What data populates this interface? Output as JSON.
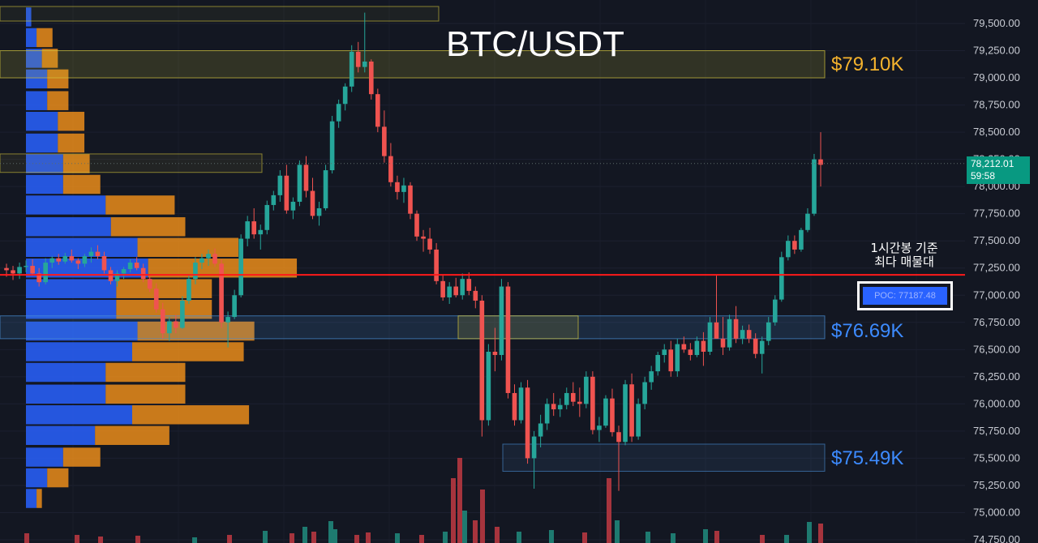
{
  "title": "BTC/USDT",
  "colors": {
    "background": "#131722",
    "up": "#26a69a",
    "down": "#ef5350",
    "volume_up": "#1e7a70",
    "volume_down": "#a6343d",
    "profile_blue": "#2962ff",
    "profile_orange": "#f7931a",
    "zone_yellow": "#d4c53a",
    "zone_blue": "#4a90d9",
    "poc_line": "#ff1a1a",
    "label_orange": "#f5b32d",
    "label_blue": "#3d8bff"
  },
  "zones": [
    {
      "label": "$79.10K",
      "color": "#f5b32d"
    },
    {
      "label": "$76.69K",
      "color": "#3d8bff"
    },
    {
      "label": "$75.49K",
      "color": "#3d8bff"
    }
  ],
  "annotation": {
    "line1": "1시간봉 기준",
    "line2": "최다 매물대"
  },
  "poc_label": "POC: 77187.48",
  "price_tag": {
    "price": "78,212.01",
    "countdown": "59:58"
  },
  "chart_data": {
    "type": "candlestick",
    "title": "BTC/USDT",
    "y_axis": {
      "ticks": [
        "79,500.00",
        "79,250.00",
        "79,000.00",
        "78,750.00",
        "78,500.00",
        "78,250.00",
        "78,000.00",
        "77,750.00",
        "77,500.00",
        "77,250.00",
        "77,000.00",
        "76,750.00",
        "76,500.00",
        "76,250.00",
        "76,000.00",
        "75,750.00",
        "75,500.00",
        "75,250.00",
        "75,000.00",
        "74,750.00"
      ],
      "range": [
        74740,
        79620
      ]
    },
    "last_price": 78212.01,
    "poc": 77187.48,
    "zones": [
      {
        "name": "resistance",
        "low": 79000,
        "high": 79250,
        "value": 79100
      },
      {
        "name": "support",
        "low": 76600,
        "high": 76800,
        "value": 76690
      },
      {
        "name": "support",
        "low": 75380,
        "high": 75620,
        "value": 75490
      }
    ],
    "candles": [
      [
        77250,
        77290,
        77170,
        77230
      ],
      [
        77230,
        77270,
        77140,
        77200
      ],
      [
        77200,
        77300,
        77150,
        77260
      ],
      [
        77260,
        77320,
        77210,
        77270
      ],
      [
        77270,
        77330,
        77180,
        77200
      ],
      [
        77200,
        77250,
        77080,
        77120
      ],
      [
        77120,
        77340,
        77100,
        77300
      ],
      [
        77300,
        77360,
        77250,
        77340
      ],
      [
        77340,
        77380,
        77280,
        77310
      ],
      [
        77310,
        77390,
        77290,
        77360
      ],
      [
        77360,
        77420,
        77300,
        77320
      ],
      [
        77320,
        77340,
        77240,
        77290
      ],
      [
        77290,
        77380,
        77260,
        77360
      ],
      [
        77360,
        77440,
        77300,
        77400
      ],
      [
        77400,
        77460,
        77330,
        77360
      ],
      [
        77360,
        77400,
        77200,
        77230
      ],
      [
        77230,
        77260,
        77100,
        77130
      ],
      [
        77130,
        77230,
        77080,
        77200
      ],
      [
        77200,
        77260,
        77150,
        77240
      ],
      [
        77240,
        77330,
        77210,
        77300
      ],
      [
        77300,
        77350,
        77230,
        77250
      ],
      [
        77250,
        77290,
        77120,
        77150
      ],
      [
        77150,
        77190,
        77030,
        77060
      ],
      [
        77060,
        77110,
        76840,
        76870
      ],
      [
        76870,
        76930,
        76600,
        76650
      ],
      [
        76650,
        76800,
        76580,
        76760
      ],
      [
        76760,
        76820,
        76650,
        76700
      ],
      [
        76700,
        76990,
        76690,
        76950
      ],
      [
        76950,
        77180,
        76920,
        77150
      ],
      [
        77150,
        77350,
        77100,
        77300
      ],
      [
        77300,
        77380,
        77240,
        77340
      ],
      [
        77340,
        77420,
        77270,
        77380
      ],
      [
        77380,
        77430,
        77260,
        77290
      ],
      [
        77290,
        77330,
        76700,
        76750
      ],
      [
        76750,
        76850,
        76520,
        76800
      ],
      [
        76800,
        77050,
        76780,
        77000
      ],
      [
        77000,
        77560,
        76980,
        77520
      ],
      [
        77520,
        77730,
        77450,
        77680
      ],
      [
        77680,
        77800,
        77520,
        77560
      ],
      [
        77560,
        77650,
        77420,
        77600
      ],
      [
        77600,
        77870,
        77560,
        77830
      ],
      [
        77830,
        77960,
        77780,
        77920
      ],
      [
        77920,
        78150,
        77860,
        78100
      ],
      [
        78100,
        78200,
        77750,
        77780
      ],
      [
        77780,
        77900,
        77700,
        77860
      ],
      [
        77860,
        78240,
        77820,
        78200
      ],
      [
        78200,
        78280,
        77900,
        77960
      ],
      [
        77960,
        78080,
        77700,
        77730
      ],
      [
        77730,
        77860,
        77640,
        77800
      ],
      [
        77800,
        78200,
        77780,
        78150
      ],
      [
        78150,
        78650,
        78120,
        78600
      ],
      [
        78600,
        78800,
        78540,
        78760
      ],
      [
        78760,
        78950,
        78700,
        78920
      ],
      [
        78920,
        79300,
        78870,
        79240
      ],
      [
        79240,
        79330,
        79050,
        79100
      ],
      [
        79100,
        79600,
        79050,
        79150
      ],
      [
        79150,
        79170,
        78800,
        78850
      ],
      [
        78850,
        78900,
        78500,
        78550
      ],
      [
        78550,
        78700,
        78220,
        78280
      ],
      [
        78280,
        78400,
        78000,
        78040
      ],
      [
        78040,
        78100,
        77880,
        77950
      ],
      [
        77950,
        78080,
        77850,
        78010
      ],
      [
        78010,
        78040,
        77700,
        77750
      ],
      [
        77750,
        77780,
        77500,
        77540
      ],
      [
        77540,
        77600,
        77400,
        77520
      ],
      [
        77520,
        77620,
        77380,
        77420
      ],
      [
        77420,
        77480,
        77100,
        77130
      ],
      [
        77130,
        77180,
        76950,
        76980
      ],
      [
        76980,
        77120,
        76920,
        77080
      ],
      [
        77080,
        77160,
        76980,
        77000
      ],
      [
        77000,
        77200,
        76960,
        77150
      ],
      [
        77150,
        77210,
        77000,
        77040
      ],
      [
        77040,
        77080,
        76880,
        76950
      ],
      [
        76950,
        77000,
        75700,
        75850
      ],
      [
        75850,
        76550,
        75800,
        76480
      ],
      [
        76480,
        76700,
        76300,
        76450
      ],
      [
        76450,
        77150,
        76400,
        77080
      ],
      [
        77080,
        77120,
        76050,
        76100
      ],
      [
        76100,
        76180,
        75800,
        75850
      ],
      [
        75850,
        76200,
        75820,
        76150
      ],
      [
        76150,
        76220,
        75450,
        75500
      ],
      [
        75500,
        75750,
        75220,
        75700
      ],
      [
        75700,
        75900,
        75600,
        75820
      ],
      [
        75820,
        76050,
        75760,
        76000
      ],
      [
        76000,
        76100,
        75890,
        75950
      ],
      [
        75950,
        76050,
        75880,
        75990
      ],
      [
        75990,
        76150,
        75950,
        76100
      ],
      [
        76100,
        76200,
        75980,
        76020
      ],
      [
        76020,
        76150,
        75880,
        76000
      ],
      [
        76000,
        76300,
        75960,
        76250
      ],
      [
        76250,
        76300,
        75720,
        75760
      ],
      [
        75760,
        75880,
        75650,
        75800
      ],
      [
        75800,
        76080,
        75780,
        76050
      ],
      [
        76050,
        76140,
        75700,
        75740
      ],
      [
        75740,
        75800,
        75200,
        75650
      ],
      [
        75650,
        76220,
        75620,
        76180
      ],
      [
        76180,
        76280,
        75650,
        75700
      ],
      [
        75700,
        76050,
        75670,
        76000
      ],
      [
        76000,
        76250,
        75950,
        76200
      ],
      [
        76200,
        76350,
        76130,
        76300
      ],
      [
        76300,
        76480,
        76260,
        76450
      ],
      [
        76450,
        76550,
        76380,
        76500
      ],
      [
        76500,
        76580,
        76250,
        76300
      ],
      [
        76300,
        76600,
        76250,
        76550
      ],
      [
        76550,
        76620,
        76470,
        76500
      ],
      [
        76500,
        76560,
        76400,
        76450
      ],
      [
        76450,
        76620,
        76430,
        76580
      ],
      [
        76580,
        76660,
        76350,
        76480
      ],
      [
        76480,
        76800,
        76450,
        76750
      ],
      [
        76750,
        77180,
        76600,
        76600
      ],
      [
        76600,
        76800,
        76450,
        76520
      ],
      [
        76520,
        76820,
        76490,
        76780
      ],
      [
        76780,
        76900,
        76560,
        76600
      ],
      [
        76600,
        76720,
        76550,
        76680
      ],
      [
        76680,
        76730,
        76560,
        76600
      ],
      [
        76600,
        76650,
        76420,
        76460
      ],
      [
        76460,
        76620,
        76280,
        76580
      ],
      [
        76580,
        76800,
        76540,
        76750
      ],
      [
        76750,
        77000,
        76720,
        76960
      ],
      [
        76960,
        77400,
        76940,
        77350
      ],
      [
        77350,
        77550,
        77320,
        77500
      ],
      [
        77500,
        77550,
        77380,
        77420
      ],
      [
        77420,
        77620,
        77400,
        77600
      ],
      [
        77600,
        77800,
        77580,
        77750
      ],
      [
        77750,
        78300,
        77730,
        78250
      ],
      [
        78250,
        78500,
        78000,
        78200
      ]
    ],
    "volume_profile": [
      {
        "price": 79560,
        "buy": 1,
        "sell": 0
      },
      {
        "price": 79370,
        "buy": 2,
        "sell": 3
      },
      {
        "price": 79180,
        "buy": 3,
        "sell": 3
      },
      {
        "price": 78990,
        "buy": 4,
        "sell": 4
      },
      {
        "price": 78790,
        "buy": 4,
        "sell": 4
      },
      {
        "price": 78600,
        "buy": 6,
        "sell": 5
      },
      {
        "price": 78400,
        "buy": 6,
        "sell": 5
      },
      {
        "price": 78210,
        "buy": 7,
        "sell": 5
      },
      {
        "price": 78020,
        "buy": 7,
        "sell": 7
      },
      {
        "price": 77830,
        "buy": 15,
        "sell": 13
      },
      {
        "price": 77630,
        "buy": 16,
        "sell": 14
      },
      {
        "price": 77440,
        "buy": 21,
        "sell": 19
      },
      {
        "price": 77250,
        "buy": 23,
        "sell": 28
      },
      {
        "price": 77060,
        "buy": 17,
        "sell": 18
      },
      {
        "price": 76870,
        "buy": 17,
        "sell": 18
      },
      {
        "price": 76670,
        "buy": 21,
        "sell": 22
      },
      {
        "price": 76480,
        "buy": 20,
        "sell": 21
      },
      {
        "price": 76290,
        "buy": 15,
        "sell": 15
      },
      {
        "price": 76090,
        "buy": 15,
        "sell": 15
      },
      {
        "price": 75900,
        "buy": 20,
        "sell": 22
      },
      {
        "price": 75710,
        "buy": 13,
        "sell": 14
      },
      {
        "price": 75510,
        "buy": 7,
        "sell": 7
      },
      {
        "price": 75320,
        "buy": 4,
        "sell": 4
      },
      {
        "price": 75130,
        "buy": 2,
        "sell": 1
      }
    ],
    "volume_bars": [
      {
        "x": 33,
        "v": 12,
        "up": false
      },
      {
        "x": 95,
        "v": 10,
        "up": false
      },
      {
        "x": 124,
        "v": 8,
        "up": false
      },
      {
        "x": 170,
        "v": 9,
        "up": false
      },
      {
        "x": 240,
        "v": 7,
        "up": true
      },
      {
        "x": 283,
        "v": 10,
        "up": false
      },
      {
        "x": 327,
        "v": 15,
        "up": true
      },
      {
        "x": 360,
        "v": 12,
        "up": false
      },
      {
        "x": 376,
        "v": 20,
        "up": true
      },
      {
        "x": 387,
        "v": 14,
        "up": false
      },
      {
        "x": 408,
        "v": 27,
        "up": true
      },
      {
        "x": 413,
        "v": 17,
        "up": true
      },
      {
        "x": 440,
        "v": 10,
        "up": false
      },
      {
        "x": 454,
        "v": 13,
        "up": false
      },
      {
        "x": 490,
        "v": 12,
        "up": true
      },
      {
        "x": 520,
        "v": 10,
        "up": false
      },
      {
        "x": 549,
        "v": 14,
        "up": true
      },
      {
        "x": 559,
        "v": 80,
        "up": false
      },
      {
        "x": 567,
        "v": 105,
        "up": false
      },
      {
        "x": 573,
        "v": 40,
        "up": true
      },
      {
        "x": 586,
        "v": 28,
        "up": false
      },
      {
        "x": 595,
        "v": 66,
        "up": false
      },
      {
        "x": 613,
        "v": 20,
        "up": false
      },
      {
        "x": 640,
        "v": 14,
        "up": true
      },
      {
        "x": 680,
        "v": 16,
        "up": true
      },
      {
        "x": 721,
        "v": 13,
        "up": false
      },
      {
        "x": 751,
        "v": 80,
        "up": false
      },
      {
        "x": 761,
        "v": 28,
        "up": true
      },
      {
        "x": 799,
        "v": 14,
        "up": true
      },
      {
        "x": 830,
        "v": 12,
        "up": true
      },
      {
        "x": 870,
        "v": 17,
        "up": true
      },
      {
        "x": 884,
        "v": 15,
        "up": false
      },
      {
        "x": 940,
        "v": 10,
        "up": false
      },
      {
        "x": 970,
        "v": 10,
        "up": true
      },
      {
        "x": 998,
        "v": 26,
        "up": true
      },
      {
        "x": 1012,
        "v": 24,
        "up": false
      }
    ]
  }
}
